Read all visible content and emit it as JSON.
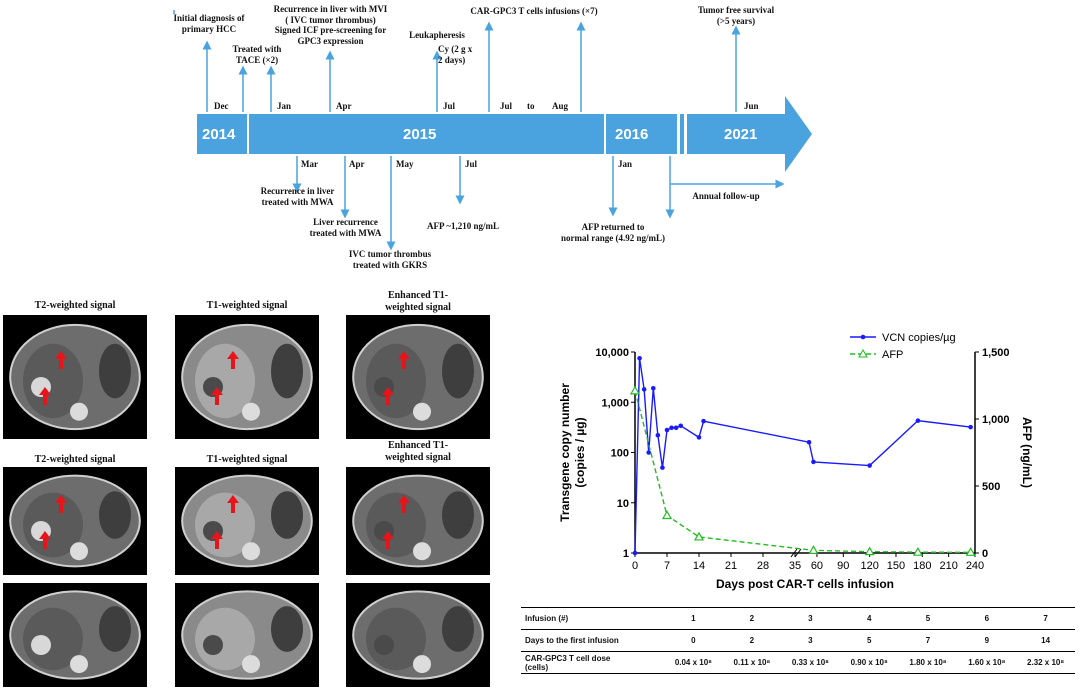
{
  "timeline": {
    "years": [
      "2014",
      "2015",
      "2016",
      "2021"
    ],
    "months_top": [
      "Dec",
      "Jan",
      "Apr",
      "Jul",
      "Jul",
      "to",
      "Aug",
      "Jun"
    ],
    "months_bottom": [
      "Mar",
      "Apr",
      "May",
      "Jul",
      "Jan"
    ],
    "events_top": [
      "Initial diagnosis of\nprimary HCC",
      "Treated with\nTACE (×2)",
      "Recurrence in liver with MVI\n( IVC tumor thrombus)\nSigned ICF pre-screening for\nGPC3 expression",
      "Leukapheresis",
      "Cy (2 g x\n2 days)",
      "CAR-GPC3 T cells infusions (×7)",
      "Tumor free survival\n(>5 years)"
    ],
    "events_bottom": [
      "Recurrence in liver\ntreated with MWA",
      "Liver recurrence\ntreated with MWA",
      "IVC tumor thrombus\ntreated with GKRS",
      "AFP ~1,210 ng/mL",
      "AFP returned to\nnormal range (4.92 ng/mL)",
      "Annual follow-up"
    ],
    "arrow_color": "#4aa3df"
  },
  "mri": {
    "row1_titles": [
      "T2-weighted signal",
      "T1-weighted signal",
      "Enhanced T1-\nweighted signal"
    ],
    "row2_titles": [
      "T2-weighted signal",
      "T1-weighted signal",
      "Enhanced T1-\nweighted signal"
    ]
  },
  "chart_data": {
    "type": "line",
    "xlabel": "Days post CAR-T cells infusion",
    "ylabel": "Transgene copy number\n(copies / µg)",
    "y2label": "AFP (ng/mL)",
    "x_ticks": [
      "0",
      "7",
      "14",
      "21",
      "28",
      "35",
      "60",
      "90",
      "120",
      "150",
      "180",
      "210",
      "240"
    ],
    "y_ticks": [
      "1",
      "10",
      "100",
      "1,000",
      "10,000"
    ],
    "y2_ticks": [
      "0",
      "500",
      "1,000",
      "1,500"
    ],
    "y_scale": "log",
    "ylim": [
      1,
      10000
    ],
    "y2lim": [
      0,
      1500
    ],
    "legend_position": "top-right",
    "series": [
      {
        "name": "VCN copies/µg",
        "color": "#1a1aff",
        "axis": "left",
        "x": [
          0,
          1,
          2,
          3,
          4,
          5,
          6,
          7,
          8,
          9,
          10,
          14,
          15,
          51,
          56,
          120,
          175,
          235
        ],
        "y": [
          1,
          7500,
          1800,
          100,
          1900,
          220,
          50,
          280,
          310,
          310,
          340,
          200,
          420,
          160,
          65,
          55,
          430,
          320
        ]
      },
      {
        "name": "AFP",
        "color": "#22bb22",
        "axis": "right",
        "x": [
          0,
          7,
          14,
          56,
          120,
          175,
          235
        ],
        "y": [
          1210,
          280,
          120,
          20,
          10,
          6,
          5
        ]
      }
    ]
  },
  "dose_table": {
    "headers": [
      "Infusion (#)",
      "1",
      "2",
      "3",
      "4",
      "5",
      "6",
      "7"
    ],
    "rows": [
      [
        "Days to the first infusion",
        "0",
        "2",
        "3",
        "5",
        "7",
        "9",
        "14"
      ],
      [
        "CAR-GPC3 T cell dose\n(cells)",
        "0.04 x 10⁸",
        "0.11 x 10⁸",
        "0.33 x 10⁸",
        "0.90 x 10⁸",
        "1.80 x 10⁸",
        "1.60 x 10⁸",
        "2.32 x 10⁸"
      ]
    ]
  }
}
